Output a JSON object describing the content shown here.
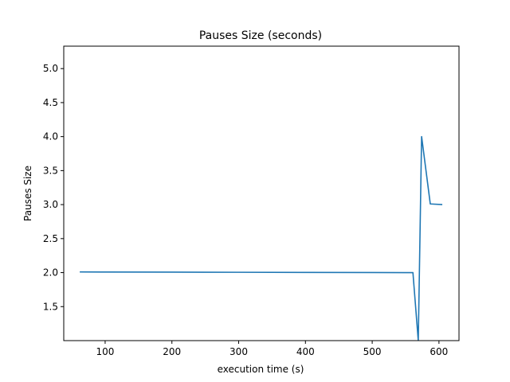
{
  "chart_data": {
    "type": "line",
    "title": "Pauses Size (seconds)",
    "xlabel": "execution time (s)",
    "ylabel": "Pauses Size",
    "xlim": [
      38,
      630
    ],
    "ylim": [
      1.0,
      5.33
    ],
    "xticks": [
      100,
      200,
      300,
      400,
      500,
      600
    ],
    "yticks": [
      1.5,
      2.0,
      2.5,
      3.0,
      3.5,
      4.0,
      4.5,
      5.0
    ],
    "xtick_labels": [
      "100",
      "200",
      "300",
      "400",
      "500",
      "600"
    ],
    "ytick_labels": [
      "1.5",
      "2.0",
      "2.5",
      "3.0",
      "3.5",
      "4.0",
      "4.5",
      "5.0"
    ],
    "grid": false,
    "series": [
      {
        "color": "#1f77b4",
        "x": [
          62,
          100,
          200,
          300,
          400,
          500,
          561,
          569,
          574,
          587,
          605
        ],
        "y": [
          2.01,
          2.009,
          2.007,
          2.005,
          2.003,
          2.001,
          2.0,
          1.0,
          4.0,
          3.01,
          3.0
        ]
      }
    ]
  }
}
